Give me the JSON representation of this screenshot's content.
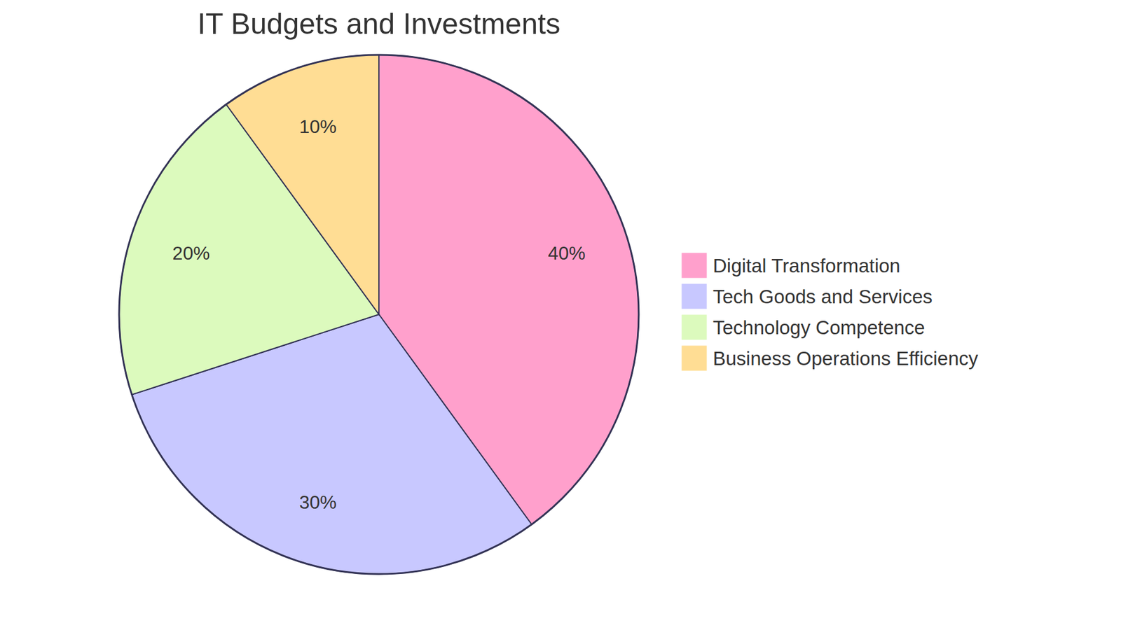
{
  "chart_data": {
    "type": "pie",
    "title": "IT Budgets and Investments",
    "categories": [
      "Digital Transformation",
      "Tech Goods and Services",
      "Technology Competence",
      "Business Operations Efficiency"
    ],
    "values": [
      40,
      30,
      20,
      10
    ],
    "value_labels": [
      "40%",
      "30%",
      "20%",
      "10%"
    ],
    "colors": [
      "#ffa0cc",
      "#c8c8ff",
      "#dcfabd",
      "#ffdd94"
    ],
    "data_labels": true,
    "legend": "right"
  }
}
